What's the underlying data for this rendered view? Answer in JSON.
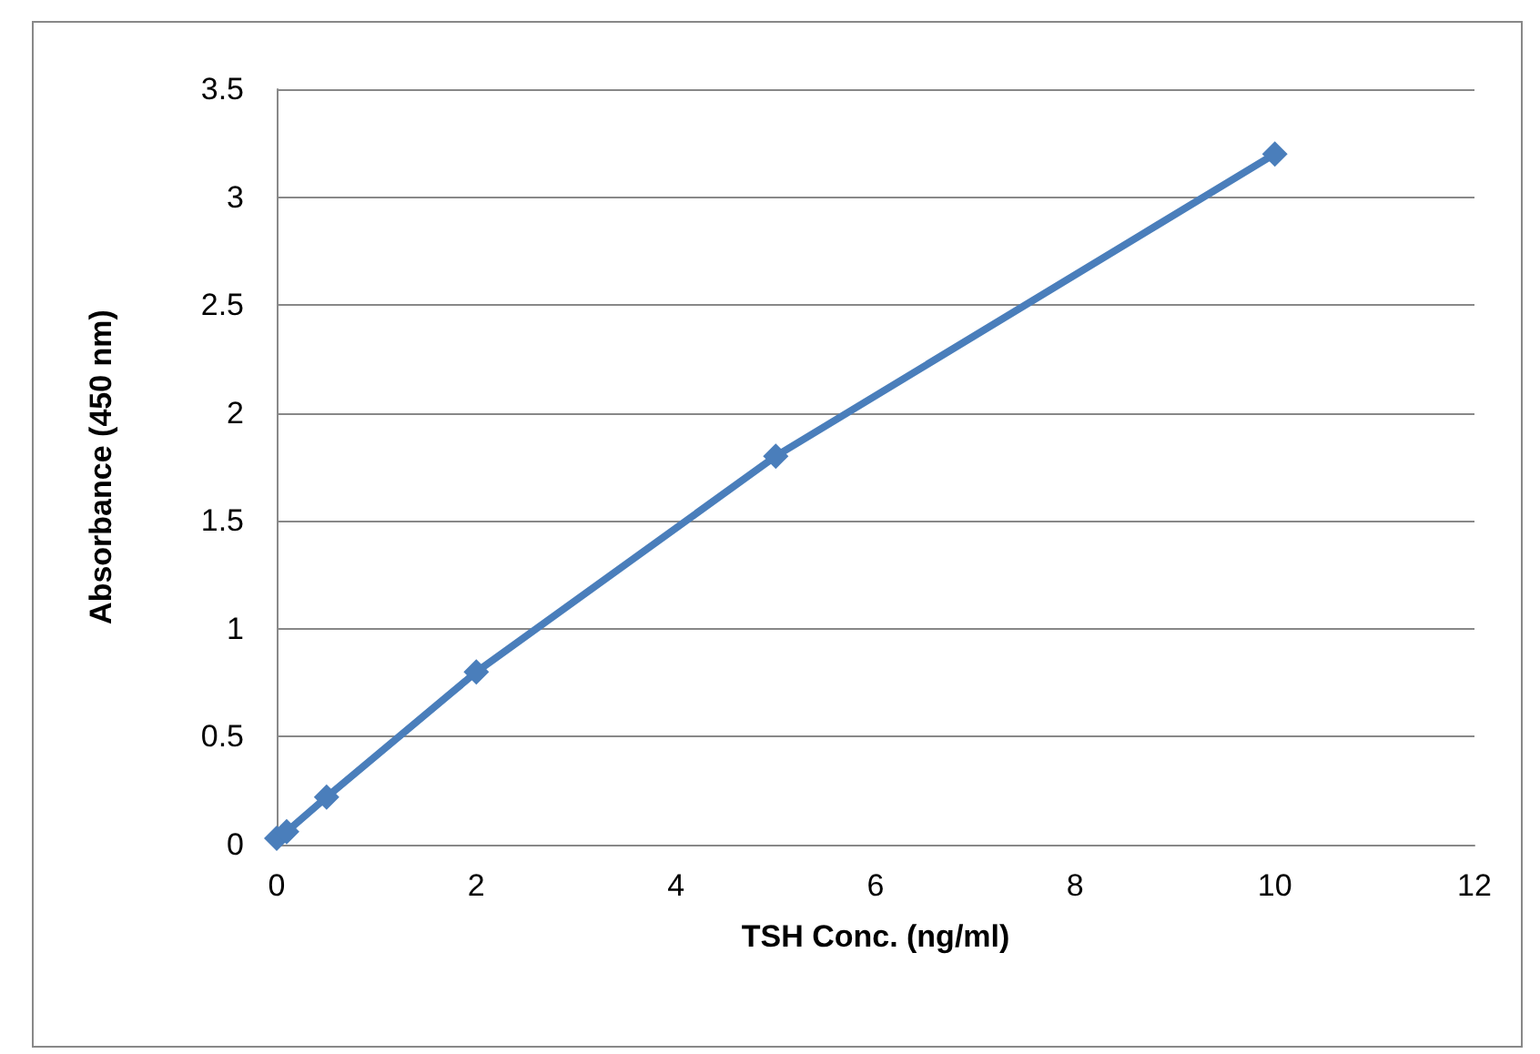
{
  "chart_data": {
    "type": "line",
    "xlabel": "TSH Conc. (ng/ml)",
    "ylabel": "Absorbance (450 nm)",
    "x": [
      0,
      0.1,
      0.5,
      2,
      5,
      10
    ],
    "series": [
      {
        "color": "#4a7ebb",
        "values": [
          0.03,
          0.06,
          0.22,
          0.8,
          1.8,
          3.2
        ]
      }
    ],
    "xlim": [
      0,
      12
    ],
    "xticks": [
      0,
      2,
      4,
      6,
      8,
      10,
      12
    ],
    "ylim": [
      0,
      3.5
    ],
    "yticks": [
      0,
      0.5,
      1,
      1.5,
      2,
      2.5,
      3,
      3.5
    ],
    "grid": "y",
    "marker": "diamond",
    "line_style": "solid"
  }
}
